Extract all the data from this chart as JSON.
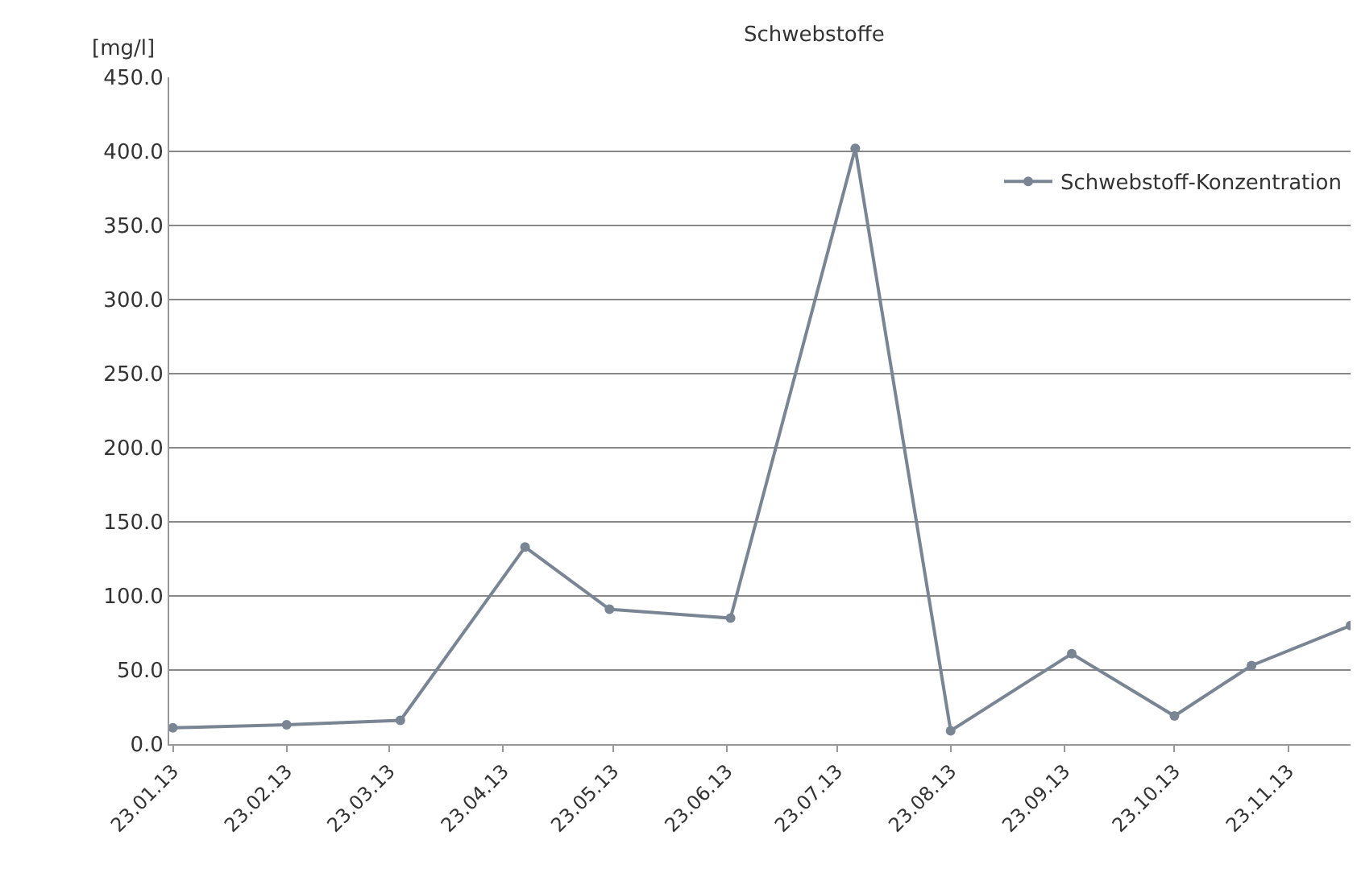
{
  "chart_data": {
    "type": "line",
    "title": "Schwebstoffe",
    "ylabel": "[mg/l]",
    "x": [
      "2013-01-23",
      "2013-02-23",
      "2013-03-26",
      "2013-04-29",
      "2013-05-22",
      "2013-06-24",
      "2013-07-28",
      "2013-08-23",
      "2013-09-25",
      "2013-10-23",
      "2013-11-13",
      "2013-12-10"
    ],
    "series": [
      {
        "name": "Schwebstoff-Konzentration",
        "color": "#7a8594",
        "values": [
          11,
          13,
          16,
          133,
          91,
          85,
          402,
          9,
          61,
          19,
          53,
          80
        ]
      }
    ],
    "xlim": [
      "2013-01-22",
      "2013-12-10"
    ],
    "xticks": [
      {
        "value": "2013-01-23",
        "label": "23.01.13"
      },
      {
        "value": "2013-02-23",
        "label": "23.02.13"
      },
      {
        "value": "2013-03-23",
        "label": "23.03.13"
      },
      {
        "value": "2013-04-23",
        "label": "23.04.13"
      },
      {
        "value": "2013-05-23",
        "label": "23.05.13"
      },
      {
        "value": "2013-06-23",
        "label": "23.06.13"
      },
      {
        "value": "2013-07-23",
        "label": "23.07.13"
      },
      {
        "value": "2013-08-23",
        "label": "23.08.13"
      },
      {
        "value": "2013-09-23",
        "label": "23.09.13"
      },
      {
        "value": "2013-10-23",
        "label": "23.10.13"
      },
      {
        "value": "2013-11-23",
        "label": "23.11.13"
      }
    ],
    "ylim": [
      0,
      450
    ],
    "yticks": [
      {
        "value": 0,
        "label": "0.0"
      },
      {
        "value": 50,
        "label": "50.0"
      },
      {
        "value": 100,
        "label": "100.0"
      },
      {
        "value": 150,
        "label": "150.0"
      },
      {
        "value": 200,
        "label": "200.0"
      },
      {
        "value": 250,
        "label": "250.0"
      },
      {
        "value": 300,
        "label": "300.0"
      },
      {
        "value": 350,
        "label": "350.0"
      },
      {
        "value": 400,
        "label": "400.0"
      },
      {
        "value": 450,
        "label": "450.0"
      }
    ],
    "grid": "y",
    "legend": "top right",
    "marker": "circle",
    "line_style": "solid"
  }
}
